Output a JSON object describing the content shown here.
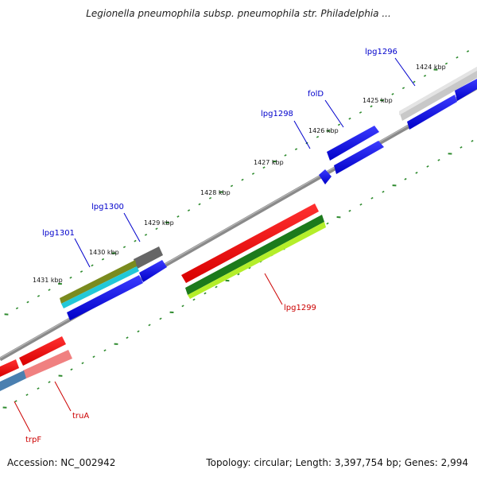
{
  "title": "Legionella pneumophila subsp. pneumophila str. Philadelphia ...",
  "footer": {
    "accession": "Accession: NC_002942",
    "summary": "Topology: circular; Length: 3,397,754 bp; Genes: 2,994"
  },
  "colors": {
    "backbone": "#888888",
    "tick": "#2e8b2e",
    "forward_label": "#0000cc",
    "reverse_label": "#cc0000"
  },
  "ticks": [
    {
      "label": "1424 kbp"
    },
    {
      "label": "1425 kbp"
    },
    {
      "label": "1426 kbp"
    },
    {
      "label": "1427 kbp"
    },
    {
      "label": "1428 kbp"
    },
    {
      "label": "1429 kbp"
    },
    {
      "label": "1430 kbp"
    },
    {
      "label": "1431 kbp"
    }
  ],
  "genes": [
    {
      "name": "lpg1296",
      "strand": "forward",
      "color": "#0000ee"
    },
    {
      "name": "folD",
      "strand": "forward",
      "color": "#0000ee"
    },
    {
      "name": "lpg1298",
      "strand": "forward",
      "color": "#0000ee"
    },
    {
      "name": "lpg1300",
      "strand": "forward",
      "color": "#0000ee"
    },
    {
      "name": "lpg1301",
      "strand": "forward",
      "color": "#0000ee"
    },
    {
      "name": "lpg1299",
      "strand": "reverse",
      "color": "#ee0000"
    },
    {
      "name": "truA",
      "strand": "reverse",
      "color": "#ee0000"
    },
    {
      "name": "trpF",
      "strand": "reverse",
      "color": "#ee0000"
    }
  ]
}
